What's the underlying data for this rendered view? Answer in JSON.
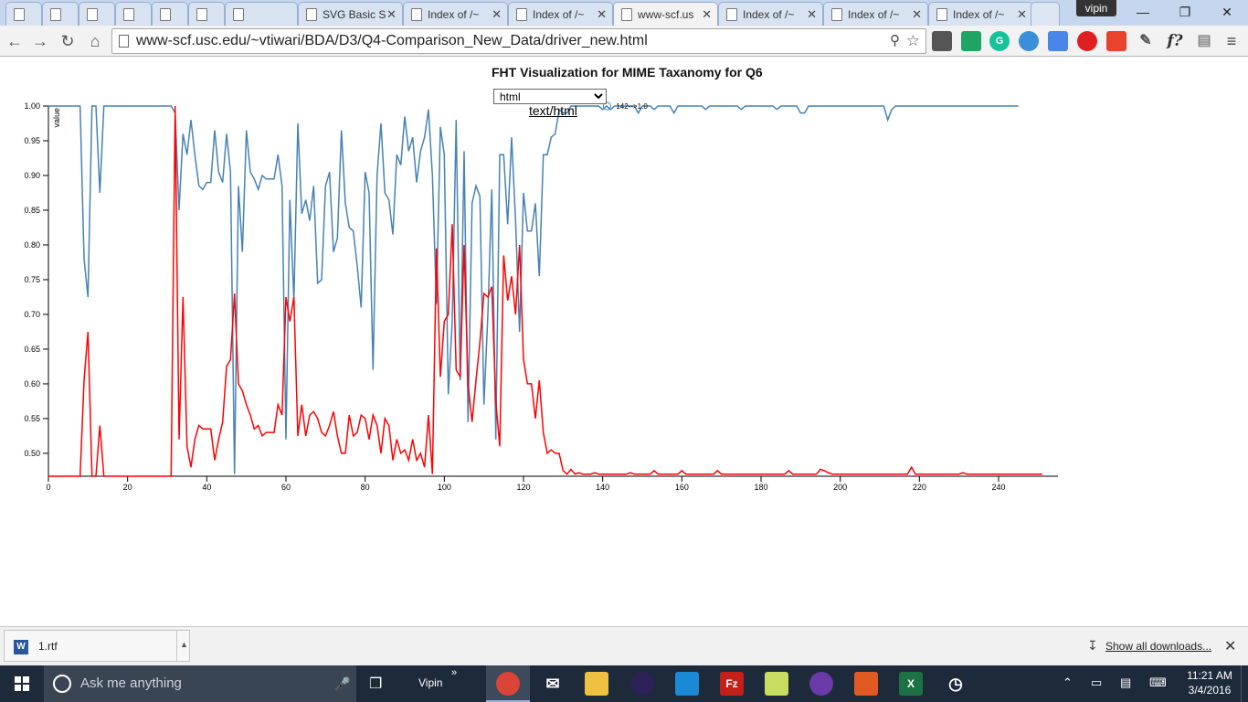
{
  "browser": {
    "tabs": [
      {
        "label": ""
      },
      {
        "label": ""
      },
      {
        "label": ""
      },
      {
        "label": ""
      },
      {
        "label": ""
      },
      {
        "label": ""
      },
      {
        "label": ""
      },
      {
        "label": "SVG Basic S"
      },
      {
        "label": "Index of /~"
      },
      {
        "label": "Index of /~"
      },
      {
        "label": "www-scf.us"
      },
      {
        "label": "Index of /~"
      },
      {
        "label": "Index of /~"
      },
      {
        "label": "Index of /~"
      }
    ],
    "profile_name": "vipin",
    "url": "www-scf.usc.edu/~vtiwari/BDA/D3/Q4-Comparison_New_Data/driver_new.html",
    "search_glyph": "f?"
  },
  "page": {
    "title": "FHT Visualization for MIME Taxanomy for Q6",
    "select_value": "html",
    "select_options": [
      "html"
    ],
    "mime_label": "text/html",
    "annotation": "142-->1.0"
  },
  "chart_data": {
    "type": "line",
    "xlabel": "",
    "ylabel": "value",
    "xlim": [
      0,
      255
    ],
    "ylim": [
      0.467,
      1.0
    ],
    "x_ticks": [
      "0",
      "20",
      "40",
      "60",
      "80",
      "100",
      "120",
      "140",
      "160",
      "180",
      "200",
      "220",
      "240"
    ],
    "y_ticks": [
      "1.00",
      "0.95",
      "0.90",
      "0.85",
      "0.80",
      "0.75",
      "0.70",
      "0.65",
      "0.60",
      "0.55",
      "0.50"
    ],
    "series": [
      {
        "name": "",
        "color": "#4682b4",
        "values": [
          1.0,
          1.0,
          1.0,
          1.0,
          1.0,
          1.0,
          1.0,
          1.0,
          1.0,
          0.78,
          0.725,
          1.0,
          1.0,
          0.875,
          1.0,
          1.0,
          1.0,
          1.0,
          1.0,
          1.0,
          1.0,
          1.0,
          1.0,
          1.0,
          1.0,
          1.0,
          1.0,
          1.0,
          1.0,
          1.0,
          1.0,
          1.0,
          0.99,
          0.85,
          0.96,
          0.93,
          0.98,
          0.93,
          0.885,
          0.88,
          0.89,
          0.89,
          0.965,
          0.905,
          0.89,
          0.96,
          0.905,
          0.47,
          0.885,
          0.79,
          0.965,
          0.905,
          0.895,
          0.88,
          0.9,
          0.895,
          0.895,
          0.895,
          0.93,
          0.885,
          0.52,
          0.865,
          0.72,
          0.975,
          0.845,
          0.865,
          0.835,
          0.885,
          0.745,
          0.75,
          0.885,
          0.905,
          0.79,
          0.81,
          0.965,
          0.86,
          0.825,
          0.82,
          0.77,
          0.71,
          0.905,
          0.875,
          0.62,
          0.9,
          0.975,
          0.875,
          0.865,
          0.815,
          0.93,
          0.915,
          0.985,
          0.935,
          0.955,
          0.89,
          0.935,
          0.955,
          0.995,
          0.9,
          0.715,
          0.97,
          0.93,
          0.585,
          0.69,
          0.98,
          0.605,
          0.935,
          0.545,
          0.86,
          0.885,
          0.87,
          0.57,
          0.7,
          0.88,
          0.52,
          0.93,
          0.93,
          0.83,
          0.955,
          0.835,
          0.675,
          0.875,
          0.82,
          0.82,
          0.86,
          0.755,
          0.93,
          0.93,
          0.955,
          0.96,
          0.995,
          0.99,
          0.99,
          1.0,
          1.0,
          1.0,
          1.0,
          1.0,
          1.0,
          1.0,
          1.0,
          0.995,
          1.0,
          0.995,
          1.0,
          1.0,
          1.0,
          1.0,
          1.0,
          1.0,
          0.99,
          1.0,
          1.0,
          1.0,
          0.995,
          1.0,
          1.0,
          1.0,
          1.0,
          0.99,
          1.0,
          1.0,
          1.0,
          1.0,
          1.0,
          1.0,
          1.0,
          0.995,
          1.0,
          1.0,
          1.0,
          1.0,
          1.0,
          1.0,
          1.0,
          1.0,
          0.995,
          1.0,
          1.0,
          1.0,
          1.0,
          1.0,
          1.0,
          1.0,
          1.0,
          0.995,
          1.0,
          1.0,
          1.0,
          1.0,
          1.0,
          0.99,
          0.99,
          1.0,
          1.0,
          1.0,
          1.0,
          1.0,
          1.0,
          1.0,
          1.0,
          1.0,
          1.0,
          1.0,
          1.0,
          1.0,
          1.0,
          1.0,
          1.0,
          1.0,
          1.0,
          1.0,
          1.0,
          0.98,
          0.995,
          1.0,
          1.0,
          1.0,
          1.0,
          1.0,
          1.0,
          1.0,
          1.0,
          1.0,
          1.0,
          1.0,
          1.0,
          1.0,
          1.0,
          1.0,
          1.0,
          1.0,
          1.0,
          1.0,
          1.0,
          1.0,
          1.0,
          1.0,
          1.0,
          1.0,
          1.0,
          1.0,
          1.0,
          1.0,
          1.0,
          1.0,
          1.0
        ]
      },
      {
        "name": "",
        "color": "#ff0000",
        "values": [
          0.467,
          0.467,
          0.467,
          0.467,
          0.467,
          0.467,
          0.467,
          0.467,
          0.467,
          0.605,
          0.675,
          0.467,
          0.467,
          0.54,
          0.467,
          0.467,
          0.467,
          0.467,
          0.467,
          0.467,
          0.467,
          0.467,
          0.467,
          0.467,
          0.467,
          0.467,
          0.467,
          0.467,
          0.467,
          0.467,
          0.467,
          0.467,
          1.0,
          0.52,
          0.725,
          0.51,
          0.48,
          0.52,
          0.54,
          0.535,
          0.535,
          0.535,
          0.49,
          0.52,
          0.545,
          0.625,
          0.635,
          0.73,
          0.6,
          0.59,
          0.57,
          0.555,
          0.535,
          0.54,
          0.525,
          0.53,
          0.53,
          0.53,
          0.57,
          0.555,
          0.725,
          0.69,
          0.725,
          0.525,
          0.57,
          0.525,
          0.555,
          0.56,
          0.55,
          0.53,
          0.525,
          0.54,
          0.56,
          0.525,
          0.5,
          0.5,
          0.555,
          0.525,
          0.53,
          0.555,
          0.55,
          0.52,
          0.555,
          0.54,
          0.5,
          0.55,
          0.54,
          0.49,
          0.52,
          0.5,
          0.505,
          0.49,
          0.52,
          0.49,
          0.5,
          0.48,
          0.555,
          0.47,
          0.795,
          0.61,
          0.69,
          0.7,
          0.83,
          0.62,
          0.61,
          0.8,
          0.6,
          0.545,
          0.605,
          0.66,
          0.73,
          0.725,
          0.74,
          0.575,
          0.51,
          0.785,
          0.72,
          0.755,
          0.7,
          0.8,
          0.635,
          0.6,
          0.6,
          0.55,
          0.605,
          0.53,
          0.5,
          0.505,
          0.5,
          0.5,
          0.475,
          0.47,
          0.477,
          0.47,
          0.472,
          0.47,
          0.47,
          0.47,
          0.472,
          0.47,
          0.47,
          0.47,
          0.47,
          0.47,
          0.47,
          0.47,
          0.47,
          0.472,
          0.47,
          0.47,
          0.47,
          0.47,
          0.47,
          0.475,
          0.47,
          0.47,
          0.47,
          0.47,
          0.47,
          0.47,
          0.475,
          0.47,
          0.47,
          0.47,
          0.47,
          0.47,
          0.47,
          0.47,
          0.47,
          0.475,
          0.47,
          0.47,
          0.47,
          0.47,
          0.47,
          0.47,
          0.47,
          0.47,
          0.47,
          0.47,
          0.47,
          0.47,
          0.47,
          0.47,
          0.47,
          0.47,
          0.47,
          0.475,
          0.47,
          0.47,
          0.47,
          0.47,
          0.47,
          0.47,
          0.47,
          0.477,
          0.475,
          0.472,
          0.47,
          0.47,
          0.47,
          0.47,
          0.47,
          0.47,
          0.47,
          0.47,
          0.47,
          0.47,
          0.47,
          0.47,
          0.47,
          0.47,
          0.47,
          0.47,
          0.47,
          0.47,
          0.47,
          0.47,
          0.48,
          0.47,
          0.47,
          0.47,
          0.47,
          0.47,
          0.47,
          0.47,
          0.47,
          0.47,
          0.47,
          0.47,
          0.47,
          0.472,
          0.47,
          0.47,
          0.47,
          0.47,
          0.47,
          0.47,
          0.47,
          0.47,
          0.47,
          0.47,
          0.47,
          0.47,
          0.47,
          0.47,
          0.47,
          0.47,
          0.47,
          0.47,
          0.47,
          0.47
        ]
      }
    ],
    "annotation_point": {
      "x": 142,
      "y": 1.0
    }
  },
  "downloads": {
    "file_name": "1.rtf",
    "show_all": "Show all downloads..."
  },
  "taskbar": {
    "search_placeholder": "Ask me anything",
    "user_label": "Vipin",
    "time": "11:21 AM",
    "date": "3/4/2016"
  }
}
